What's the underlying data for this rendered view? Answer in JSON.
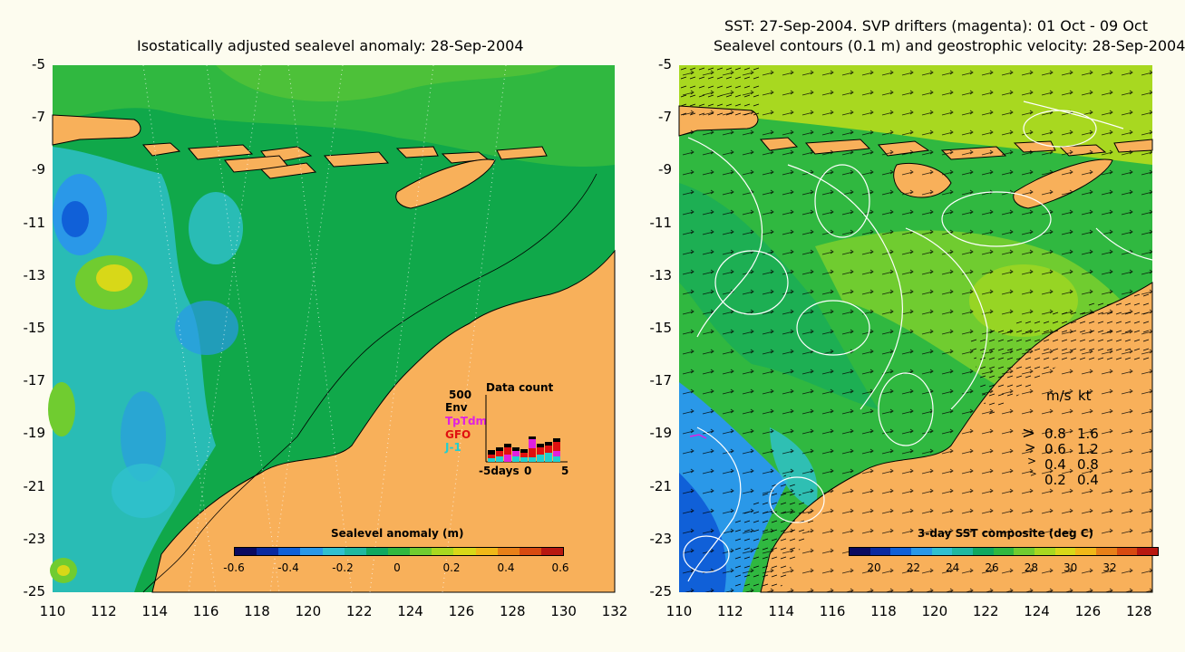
{
  "left_panel": {
    "title": "Isostatically adjusted sealevel anomaly: 28-Sep-2004",
    "y_ticks": [
      "-5",
      "-7",
      "-9",
      "-11",
      "-13",
      "-15",
      "-17",
      "-19",
      "-21",
      "-23",
      "-25"
    ],
    "x_ticks": [
      "110",
      "112",
      "114",
      "116",
      "118",
      "120",
      "122",
      "124",
      "126",
      "128",
      "130",
      "132"
    ],
    "colorbar": {
      "title": "Sealevel anomaly (m)",
      "labels": [
        "-0.6",
        "-0.4",
        "-0.2",
        "0",
        "0.2",
        "0.4",
        "0.6"
      ],
      "colors": [
        "#0a0a60",
        "#0a2aa0",
        "#1060d8",
        "#2a98e8",
        "#30c0d0",
        "#20b8a0",
        "#10a860",
        "#30b840",
        "#70cc30",
        "#a8d820",
        "#d8d818",
        "#f0b818",
        "#e88018",
        "#d84a10",
        "#b81810"
      ]
    },
    "data_count": {
      "title": "Data count",
      "scale_label": "500",
      "legend": [
        {
          "name": "Env",
          "color": "#000000"
        },
        {
          "name": "TpTdm",
          "color": "#e020e0"
        },
        {
          "name": "GFO",
          "color": "#e01010"
        },
        {
          "name": "J-1",
          "color": "#20d0d0"
        }
      ],
      "x_labels": [
        "-5days",
        "0",
        "5"
      ]
    }
  },
  "right_panel": {
    "title_line1": "SST: 27-Sep-2004. SVP drifters (magenta): 01 Oct - 09 Oct",
    "title_line2": "Sealevel contours (0.1 m) and geostrophic velocity: 28-Sep-2004",
    "y_ticks": [
      "-5",
      "-7",
      "-9",
      "-11",
      "-13",
      "-15",
      "-17",
      "-19",
      "-21",
      "-23",
      "-25"
    ],
    "x_ticks": [
      "110",
      "112",
      "114",
      "116",
      "118",
      "120",
      "122",
      "124",
      "126",
      "128"
    ],
    "colorbar": {
      "title": "3-day SST composite (deg C)",
      "labels": [
        "20",
        "22",
        "24",
        "26",
        "28",
        "30",
        "32"
      ],
      "colors": [
        "#0a0a60",
        "#0a2aa0",
        "#1060d8",
        "#2a98e8",
        "#30c0d0",
        "#20b8a0",
        "#10a860",
        "#30b840",
        "#70cc30",
        "#a8d820",
        "#d8d818",
        "#f0b818",
        "#e88018",
        "#d84a10",
        "#b81810"
      ]
    },
    "velocity_legend": {
      "header_ms": "m/s",
      "header_kt": "kt",
      "rows": [
        {
          "ms": "0.8",
          "kt": "1.6"
        },
        {
          "ms": "0.6",
          "kt": "1.2"
        },
        {
          "ms": "0.4",
          "kt": "0.8"
        },
        {
          "ms": "0.2",
          "kt": "0.4"
        }
      ]
    }
  },
  "colors": {
    "land": "#f8b05a",
    "ocean_green": "#10a84a",
    "background": "#fdfcef"
  }
}
